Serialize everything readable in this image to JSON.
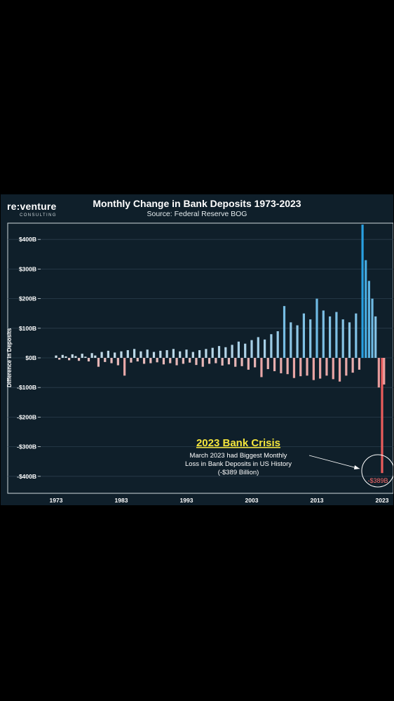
{
  "logo": {
    "main": "re:venture",
    "sub": "CONSULTING"
  },
  "chart_data": {
    "type": "bar",
    "title": "Monthly Change in Bank Deposits 1973-2023",
    "subtitle": "Source: Federal Reserve BOG",
    "ylabel": "Difference in Deposits",
    "xlim": [
      1973,
      2023.5
    ],
    "ylim": [
      -450,
      450
    ],
    "x_ticks": [
      1973,
      1983,
      1993,
      2003,
      2013,
      2023
    ],
    "x_tick_labels": [
      "1973",
      "1983",
      "1993",
      "2003",
      "2013",
      "2023"
    ],
    "y_ticks": [
      400,
      300,
      200,
      100,
      0,
      -100,
      -200,
      -300,
      -400
    ],
    "y_tick_labels": [
      "$400B",
      "$300B",
      "$200B",
      "$100B",
      "$0B",
      "-$100B",
      "-$200B",
      "-$300B",
      "-$400B"
    ],
    "units": "Billions USD",
    "series": [
      {
        "values": [
          [
            1973.0,
            8
          ],
          [
            1973.5,
            -6
          ],
          [
            1974.0,
            10
          ],
          [
            1974.5,
            5
          ],
          [
            1975.0,
            -8
          ],
          [
            1975.5,
            12
          ],
          [
            1976.0,
            6
          ],
          [
            1976.5,
            -10
          ],
          [
            1977.0,
            14
          ],
          [
            1977.5,
            4
          ],
          [
            1978.0,
            -12
          ],
          [
            1978.5,
            16
          ],
          [
            1979.0,
            8
          ],
          [
            1979.5,
            -30
          ],
          [
            1980.0,
            20
          ],
          [
            1980.5,
            -14
          ],
          [
            1981.0,
            24
          ],
          [
            1981.5,
            -18
          ],
          [
            1982.0,
            18
          ],
          [
            1982.5,
            -25
          ],
          [
            1983.0,
            22
          ],
          [
            1983.5,
            -60
          ],
          [
            1984.0,
            26
          ],
          [
            1984.5,
            -16
          ],
          [
            1985.0,
            30
          ],
          [
            1985.5,
            -12
          ],
          [
            1986.0,
            22
          ],
          [
            1986.5,
            -20
          ],
          [
            1987.0,
            28
          ],
          [
            1987.5,
            -18
          ],
          [
            1988.0,
            20
          ],
          [
            1988.5,
            -15
          ],
          [
            1989.0,
            24
          ],
          [
            1989.5,
            -22
          ],
          [
            1990.0,
            26
          ],
          [
            1990.5,
            -18
          ],
          [
            1991.0,
            30
          ],
          [
            1991.5,
            -25
          ],
          [
            1992.0,
            22
          ],
          [
            1992.5,
            -20
          ],
          [
            1993.0,
            28
          ],
          [
            1993.5,
            -16
          ],
          [
            1994.0,
            20
          ],
          [
            1994.5,
            -24
          ],
          [
            1995.0,
            26
          ],
          [
            1995.5,
            -30
          ],
          [
            1996.0,
            30
          ],
          [
            1996.5,
            -20
          ],
          [
            1997.0,
            34
          ],
          [
            1997.5,
            -18
          ],
          [
            1998.0,
            40
          ],
          [
            1998.5,
            -26
          ],
          [
            1999.0,
            36
          ],
          [
            1999.5,
            -22
          ],
          [
            2000.0,
            44
          ],
          [
            2000.5,
            -30
          ],
          [
            2001.0,
            55
          ],
          [
            2001.5,
            -28
          ],
          [
            2002.0,
            48
          ],
          [
            2002.5,
            -40
          ],
          [
            2003.0,
            60
          ],
          [
            2003.5,
            -32
          ],
          [
            2004.0,
            70
          ],
          [
            2004.5,
            -65
          ],
          [
            2005.0,
            62
          ],
          [
            2005.5,
            -38
          ],
          [
            2006.0,
            80
          ],
          [
            2006.5,
            -45
          ],
          [
            2007.0,
            90
          ],
          [
            2007.5,
            -52
          ],
          [
            2008.0,
            175
          ],
          [
            2008.5,
            -55
          ],
          [
            2009.0,
            120
          ],
          [
            2009.5,
            -68
          ],
          [
            2010.0,
            110
          ],
          [
            2010.5,
            -62
          ],
          [
            2011.0,
            150
          ],
          [
            2011.5,
            -60
          ],
          [
            2012.0,
            130
          ],
          [
            2012.5,
            -75
          ],
          [
            2013.0,
            200
          ],
          [
            2013.5,
            -70
          ],
          [
            2014.0,
            160
          ],
          [
            2014.5,
            -60
          ],
          [
            2015.0,
            140
          ],
          [
            2015.5,
            -72
          ],
          [
            2016.0,
            155
          ],
          [
            2016.5,
            -80
          ],
          [
            2017.0,
            130
          ],
          [
            2017.5,
            -60
          ],
          [
            2018.0,
            120
          ],
          [
            2018.5,
            -50
          ],
          [
            2019.0,
            150
          ],
          [
            2019.5,
            -40
          ],
          [
            2020.0,
            450
          ],
          [
            2020.5,
            330
          ],
          [
            2021.0,
            260
          ],
          [
            2021.5,
            200
          ],
          [
            2022.0,
            140
          ],
          [
            2022.5,
            -100
          ],
          [
            2023.0,
            -389
          ],
          [
            2023.3,
            -90
          ]
        ]
      }
    ],
    "annotation": {
      "title": "2023 Bank Crisis",
      "lines": [
        "March 2023 had Biggest Monthly",
        "Loss in Bank Deposits in US History",
        "(-$389 Billion)"
      ],
      "callout_label": "-$389B"
    }
  }
}
